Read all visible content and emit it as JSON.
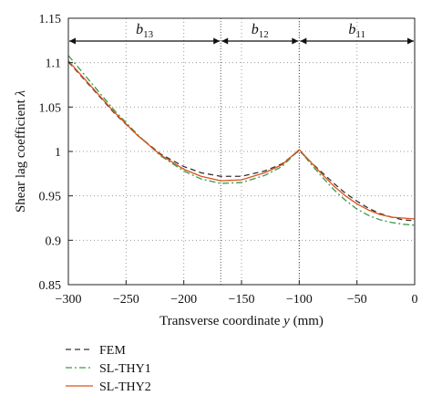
{
  "chart_data": {
    "type": "line",
    "xlabel": "Transverse coordinate",
    "xlabel_var": "y",
    "xlabel_unit": "(mm)",
    "ylabel": "Shear lag coefficient",
    "ylabel_var": "λ",
    "xlim": [
      -300,
      0
    ],
    "ylim": [
      0.85,
      1.15
    ],
    "x_ticks": [
      -300,
      -250,
      -200,
      -150,
      -100,
      -50,
      0
    ],
    "x_tick_labels": [
      "−300",
      "−250",
      "−200",
      "−150",
      "−100",
      "−50",
      "0"
    ],
    "y_ticks": [
      0.85,
      0.9,
      0.95,
      1.0,
      1.05,
      1.1,
      1.15
    ],
    "y_tick_labels": [
      "0.85",
      "0.9",
      "0.95",
      "1",
      "1.05",
      "1.1",
      "1.15"
    ],
    "grid": "dotted",
    "legend_position": "below",
    "regions": [
      {
        "label": "b",
        "sub": "13",
        "from": -300,
        "to": -168
      },
      {
        "label": "b",
        "sub": "12",
        "from": -168,
        "to": -100
      },
      {
        "label": "b",
        "sub": "11",
        "from": -100,
        "to": 0
      }
    ],
    "dividers": [
      -168,
      -100
    ],
    "series": [
      {
        "name": "FEM",
        "color": "#333333",
        "dash": "6,4",
        "x": [
          -300,
          -280,
          -260,
          -240,
          -220,
          -200,
          -185,
          -168,
          -150,
          -130,
          -115,
          -100,
          -90,
          -80,
          -70,
          -60,
          -50,
          -40,
          -30,
          -20,
          -10,
          0
        ],
        "y": [
          1.101,
          1.072,
          1.043,
          1.018,
          0.997,
          0.983,
          0.976,
          0.972,
          0.972,
          0.978,
          0.986,
          1.001,
          0.988,
          0.976,
          0.964,
          0.953,
          0.944,
          0.936,
          0.93,
          0.926,
          0.923,
          0.922
        ]
      },
      {
        "name": "SL-THY1",
        "color": "#3a9a4a",
        "dash": "7,3,2,3",
        "x": [
          -300,
          -280,
          -260,
          -240,
          -220,
          -200,
          -185,
          -168,
          -150,
          -130,
          -115,
          -100,
          -90,
          -80,
          -70,
          -60,
          -50,
          -40,
          -30,
          -20,
          -10,
          0
        ],
        "y": [
          1.108,
          1.077,
          1.046,
          1.019,
          0.995,
          0.978,
          0.969,
          0.964,
          0.965,
          0.973,
          0.983,
          1.002,
          0.986,
          0.971,
          0.957,
          0.945,
          0.935,
          0.928,
          0.923,
          0.92,
          0.918,
          0.917
        ]
      },
      {
        "name": "SL-THY2",
        "color": "#d9541c",
        "dash": "",
        "x": [
          -300,
          -280,
          -260,
          -240,
          -220,
          -200,
          -185,
          -168,
          -150,
          -130,
          -115,
          -100,
          -90,
          -80,
          -70,
          -60,
          -50,
          -40,
          -30,
          -20,
          -10,
          0
        ],
        "y": [
          1.102,
          1.073,
          1.044,
          1.018,
          0.996,
          0.98,
          0.972,
          0.967,
          0.968,
          0.976,
          0.985,
          1.002,
          0.988,
          0.974,
          0.961,
          0.95,
          0.941,
          0.934,
          0.929,
          0.926,
          0.925,
          0.924
        ]
      }
    ]
  }
}
